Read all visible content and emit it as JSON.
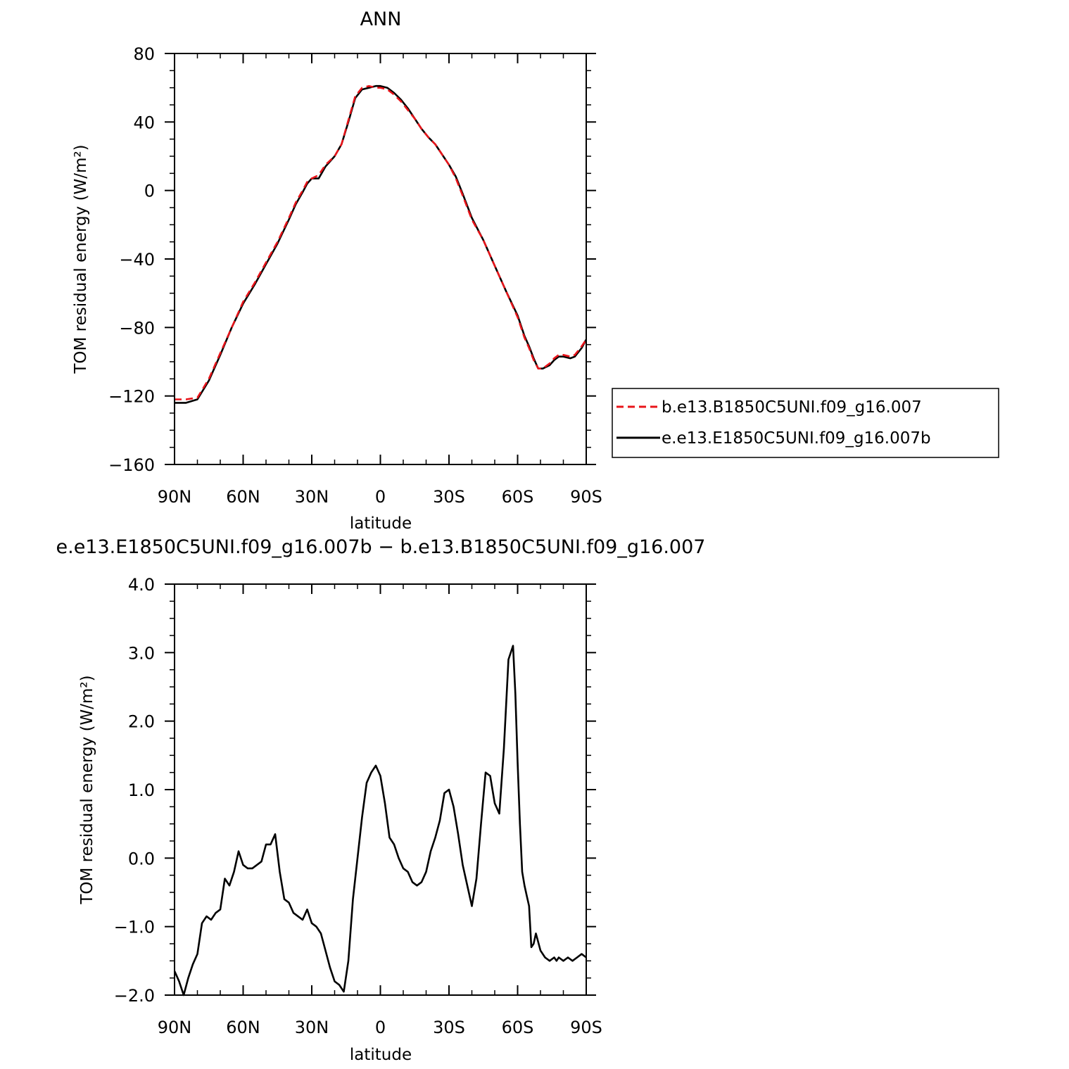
{
  "chart_data": [
    {
      "type": "line",
      "title": "ANN",
      "xlabel": "latitude",
      "ylabel": "TOM residual energy (W/m²)",
      "xlim": [
        90,
        -90
      ],
      "ylim": [
        -160,
        80
      ],
      "xticks": [
        90,
        60,
        30,
        0,
        -30,
        -60,
        -90
      ],
      "xtick_labels": [
        "90N",
        "60N",
        "30N",
        "0",
        "30S",
        "60S",
        "90S"
      ],
      "yticks": [
        -160,
        -120,
        -80,
        -40,
        0,
        40,
        80
      ],
      "ytick_labels": [
        "−160",
        "−120",
        "−80",
        "−40",
        "0",
        "40",
        "80"
      ],
      "legend_position": "right",
      "series": [
        {
          "name": "b.e13.B1850C5UNI.f09_g16.007",
          "color": "#e8141a",
          "dash": "dashed",
          "x": [
            90,
            85,
            80,
            75,
            70,
            65,
            60,
            55,
            50,
            45,
            40,
            37,
            34,
            32,
            30,
            27,
            24,
            20,
            17,
            14,
            11,
            8,
            5,
            2,
            0,
            -3,
            -6,
            -9,
            -12,
            -15,
            -18,
            -21,
            -24,
            -27,
            -30,
            -33,
            -36,
            -40,
            -45,
            -50,
            -55,
            -60,
            -63,
            -65,
            -67,
            -69,
            -71,
            -74,
            -76,
            -78,
            -80,
            -83,
            -85,
            -88,
            -90
          ],
          "y": [
            -122,
            -122,
            -121,
            -110,
            -95,
            -80,
            -65,
            -54,
            -42,
            -30,
            -16,
            -7,
            0,
            5,
            7,
            9,
            15,
            20,
            27,
            41,
            55,
            60,
            61,
            60,
            60,
            59,
            56,
            52,
            47,
            42,
            36,
            31,
            27,
            21,
            15,
            7,
            -3,
            -17,
            -29,
            -44,
            -59,
            -74,
            -86,
            -92,
            -99,
            -104,
            -104,
            -101,
            -98,
            -96,
            -96,
            -97,
            -96,
            -91,
            -87
          ]
        },
        {
          "name": "e.e13.E1850C5UNI.f09_g16.007b",
          "color": "#000000",
          "dash": "solid",
          "x": [
            90,
            85,
            80,
            75,
            70,
            65,
            60,
            55,
            50,
            45,
            40,
            37,
            34,
            32,
            30,
            27,
            24,
            20,
            17,
            14,
            11,
            8,
            5,
            2,
            0,
            -3,
            -6,
            -9,
            -12,
            -15,
            -18,
            -21,
            -24,
            -27,
            -30,
            -33,
            -36,
            -40,
            -45,
            -50,
            -55,
            -60,
            -63,
            -65,
            -67,
            -69,
            -71,
            -74,
            -76,
            -78,
            -80,
            -83,
            -85,
            -88,
            -90
          ],
          "y": [
            -124,
            -124,
            -122,
            -111,
            -96,
            -80,
            -66,
            -55,
            -43,
            -31,
            -17,
            -8,
            -1,
            4,
            7,
            7,
            14,
            20,
            27,
            40,
            54,
            59,
            60,
            61,
            61,
            60,
            57,
            53,
            48,
            42,
            36,
            31,
            27,
            21,
            15,
            8,
            -2,
            -16,
            -29,
            -44,
            -59,
            -73,
            -85,
            -91,
            -98,
            -104,
            -104,
            -102,
            -99,
            -97,
            -97,
            -98,
            -97,
            -92,
            -87
          ]
        }
      ]
    },
    {
      "type": "line",
      "title": "e.e13.E1850C5UNI.f09_g16.007b − b.e13.B1850C5UNI.f09_g16.007",
      "xlabel": "latitude",
      "ylabel": "TOM residual energy (W/m²)",
      "xlim": [
        90,
        -90
      ],
      "ylim": [
        -2.0,
        4.0
      ],
      "xticks": [
        90,
        60,
        30,
        0,
        -30,
        -60,
        -90
      ],
      "xtick_labels": [
        "90N",
        "60N",
        "30N",
        "0",
        "30S",
        "60S",
        "90S"
      ],
      "yticks": [
        -2.0,
        -1.0,
        0.0,
        1.0,
        2.0,
        3.0,
        4.0
      ],
      "ytick_labels": [
        "−2.0",
        "−1.0",
        "0.0",
        "1.0",
        "2.0",
        "3.0",
        "4.0"
      ],
      "series": [
        {
          "color": "#000000",
          "dash": "solid",
          "x": [
            90,
            88,
            86,
            84,
            82,
            80,
            78,
            76,
            74,
            72,
            70,
            68,
            66,
            64,
            62,
            60,
            58,
            56,
            54,
            52,
            50,
            48,
            46,
            44,
            42,
            40,
            38,
            36,
            34,
            32,
            30,
            28,
            26,
            24,
            22,
            20,
            18,
            16,
            14,
            12,
            10,
            8,
            6,
            4,
            2,
            0,
            -2,
            -4,
            -6,
            -8,
            -10,
            -12,
            -14,
            -16,
            -18,
            -20,
            -22,
            -24,
            -26,
            -28,
            -30,
            -32,
            -34,
            -36,
            -38,
            -40,
            -42,
            -44,
            -46,
            -48,
            -50,
            -52,
            -54,
            -56,
            -58,
            -59,
            -60,
            -61,
            -62,
            -63,
            -64,
            -65,
            -66,
            -67,
            -68,
            -70,
            -72,
            -74,
            -76,
            -77,
            -78,
            -80,
            -82,
            -84,
            -86,
            -88,
            -90
          ],
          "y": [
            -1.65,
            -1.8,
            -2.0,
            -1.75,
            -1.55,
            -1.4,
            -0.95,
            -0.85,
            -0.9,
            -0.8,
            -0.75,
            -0.3,
            -0.4,
            -0.2,
            0.1,
            -0.1,
            -0.15,
            -0.15,
            -0.1,
            -0.05,
            0.2,
            0.2,
            0.35,
            -0.2,
            -0.6,
            -0.65,
            -0.8,
            -0.85,
            -0.9,
            -0.75,
            -0.95,
            -1.0,
            -1.1,
            -1.35,
            -1.6,
            -1.8,
            -1.85,
            -1.95,
            -1.5,
            -0.6,
            0.0,
            0.6,
            1.1,
            1.25,
            1.35,
            1.2,
            0.8,
            0.3,
            0.2,
            0.0,
            -0.15,
            -0.2,
            -0.35,
            -0.4,
            -0.35,
            -0.2,
            0.1,
            0.3,
            0.55,
            0.95,
            1.0,
            0.75,
            0.35,
            -0.1,
            -0.4,
            -0.7,
            -0.3,
            0.5,
            1.25,
            1.2,
            0.8,
            0.65,
            1.6,
            2.9,
            3.1,
            2.4,
            1.4,
            0.5,
            -0.2,
            -0.4,
            -0.55,
            -0.7,
            -1.3,
            -1.25,
            -1.1,
            -1.35,
            -1.45,
            -1.5,
            -1.45,
            -1.5,
            -1.45,
            -1.5,
            -1.45,
            -1.5,
            -1.45,
            -1.4,
            -1.45
          ]
        }
      ]
    }
  ]
}
